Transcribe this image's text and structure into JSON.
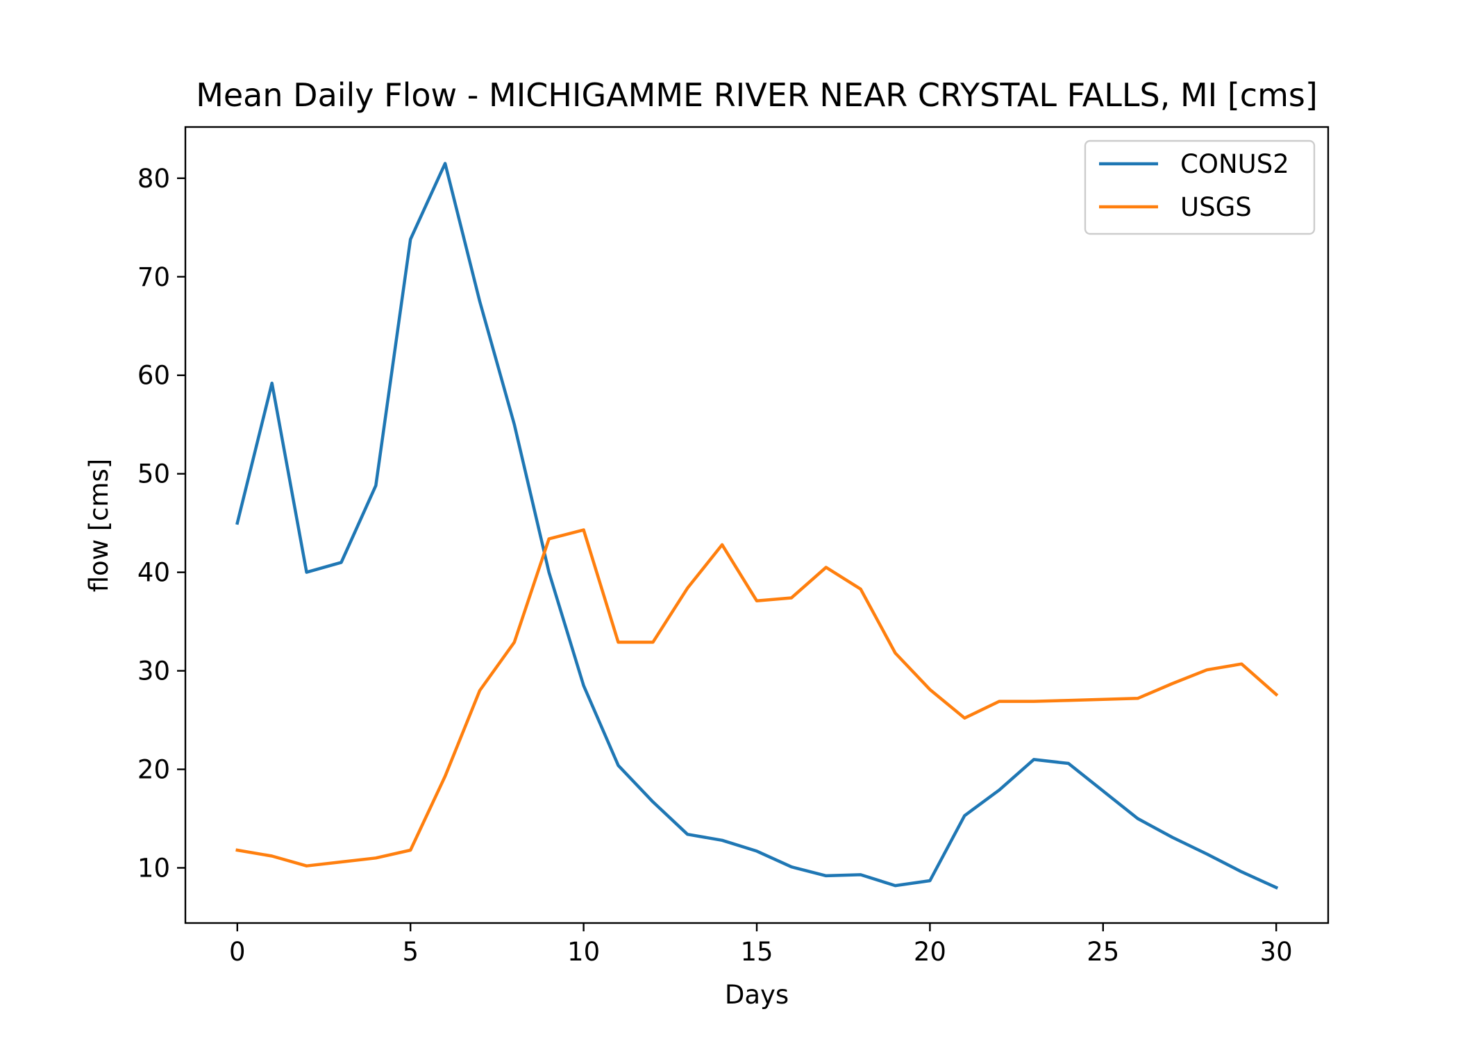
{
  "chart_data": {
    "type": "line",
    "title": "Mean Daily Flow - MICHIGAMME RIVER NEAR CRYSTAL FALLS, MI [cms]",
    "xlabel": "Days",
    "ylabel": "flow [cms]",
    "xlim": [
      -1.5,
      31.5
    ],
    "ylim": [
      4.4,
      85.2
    ],
    "xticks": [
      0,
      5,
      10,
      15,
      20,
      25,
      30
    ],
    "yticks": [
      10,
      20,
      30,
      40,
      50,
      60,
      70,
      80
    ],
    "grid": false,
    "legend_position": "top-right",
    "x": [
      0,
      1,
      2,
      3,
      4,
      5,
      6,
      7,
      8,
      9,
      10,
      11,
      12,
      13,
      14,
      15,
      16,
      17,
      18,
      19,
      20,
      21,
      22,
      23,
      24,
      25,
      26,
      27,
      28,
      29,
      30
    ],
    "series": [
      {
        "name": "CONUS2",
        "color": "#1f77b4",
        "values": [
          45.0,
          59.2,
          40.0,
          41.0,
          48.8,
          73.8,
          81.5,
          67.5,
          55.0,
          40.0,
          28.5,
          20.4,
          16.7,
          13.4,
          12.8,
          11.7,
          10.1,
          9.2,
          9.3,
          8.2,
          8.7,
          15.3,
          17.9,
          21.0,
          20.6,
          17.8,
          15.0,
          13.1,
          11.4,
          9.6,
          8.0
        ]
      },
      {
        "name": "USGS",
        "color": "#ff7f0e",
        "values": [
          11.8,
          11.2,
          10.2,
          10.6,
          11.0,
          11.8,
          19.3,
          28.0,
          32.9,
          43.4,
          44.3,
          32.9,
          32.9,
          38.4,
          42.8,
          37.1,
          37.4,
          40.5,
          38.3,
          31.8,
          28.1,
          25.2,
          26.9,
          26.9,
          27.0,
          27.1,
          27.2,
          28.7,
          30.1,
          30.7,
          27.6
        ]
      }
    ]
  }
}
